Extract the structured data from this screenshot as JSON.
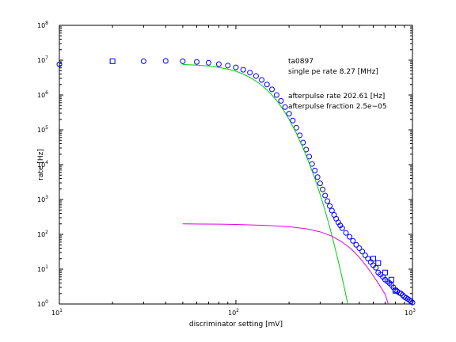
{
  "chart_data": {
    "type": "scatter",
    "title": "",
    "xlabel": "discriminator setting [mV]",
    "ylabel": "rate [Hz]",
    "xscale": "log",
    "yscale": "log",
    "xlim": [
      10,
      1000
    ],
    "ylim": [
      1,
      100000000
    ],
    "grid": false,
    "x_ticks": [
      {
        "base": "10",
        "exp": "1",
        "value": 10
      },
      {
        "base": "10",
        "exp": "2",
        "value": 100
      },
      {
        "base": "10",
        "exp": "3",
        "value": 1000
      }
    ],
    "y_ticks": [
      {
        "base": "10",
        "exp": "0",
        "value": 1
      },
      {
        "base": "10",
        "exp": "1",
        "value": 10
      },
      {
        "base": "10",
        "exp": "2",
        "value": 100
      },
      {
        "base": "10",
        "exp": "3",
        "value": 1000
      },
      {
        "base": "10",
        "exp": "4",
        "value": 10000
      },
      {
        "base": "10",
        "exp": "5",
        "value": 100000
      },
      {
        "base": "10",
        "exp": "6",
        "value": 1000000
      },
      {
        "base": "10",
        "exp": "7",
        "value": 10000000
      },
      {
        "base": "10",
        "exp": "8",
        "value": 100000000
      }
    ],
    "annotations": [
      "ta0897",
      "single pe rate 8.27 [MHz]",
      "afterpulse rate 202.61 [Hz]",
      "afterpulse fraction 2.5e−05"
    ],
    "series": [
      {
        "marker": "circle",
        "color": "#0000ff",
        "points": [
          [
            10,
            7600000
          ],
          [
            30,
            9300000
          ],
          [
            40,
            9500000
          ],
          [
            50,
            9300000
          ],
          [
            60,
            8900000
          ],
          [
            70,
            8400000
          ],
          [
            80,
            7700000
          ],
          [
            90,
            7000000
          ],
          [
            100,
            6200000
          ],
          [
            110,
            5300000
          ],
          [
            120,
            4400000
          ],
          [
            130,
            3500000
          ],
          [
            140,
            2700000
          ],
          [
            150,
            2000000
          ],
          [
            160,
            1450000
          ],
          [
            170,
            1000000
          ],
          [
            180,
            680000
          ],
          [
            190,
            450000
          ],
          [
            200,
            290000
          ],
          [
            210,
            185000
          ],
          [
            220,
            115000
          ],
          [
            230,
            70000
          ],
          [
            240,
            43000
          ],
          [
            250,
            27000
          ],
          [
            260,
            17000
          ],
          [
            270,
            10500
          ],
          [
            280,
            6800
          ],
          [
            290,
            4400
          ],
          [
            300,
            2900
          ],
          [
            310,
            1950
          ],
          [
            320,
            1300
          ],
          [
            330,
            900
          ],
          [
            340,
            650
          ],
          [
            350,
            480
          ],
          [
            360,
            360
          ],
          [
            370,
            280
          ],
          [
            380,
            220
          ],
          [
            390,
            180
          ],
          [
            400,
            150
          ],
          [
            420,
            110
          ],
          [
            440,
            85
          ],
          [
            460,
            65
          ],
          [
            480,
            50
          ],
          [
            500,
            40
          ],
          [
            520,
            32
          ],
          [
            540,
            25
          ],
          [
            560,
            20
          ],
          [
            580,
            16
          ],
          [
            600,
            13
          ],
          [
            620,
            11
          ],
          [
            640,
            8
          ],
          [
            660,
            7
          ],
          [
            680,
            6
          ],
          [
            700,
            5
          ],
          [
            720,
            4.5
          ],
          [
            740,
            4
          ],
          [
            760,
            3.5
          ],
          [
            780,
            3
          ],
          [
            800,
            2.5
          ],
          [
            820,
            2.3
          ],
          [
            840,
            2.1
          ],
          [
            860,
            2
          ],
          [
            880,
            1.8
          ],
          [
            900,
            1.6
          ],
          [
            920,
            1.5
          ],
          [
            940,
            1.4
          ],
          [
            960,
            1.3
          ],
          [
            980,
            1.2
          ],
          [
            1000,
            1.1
          ]
        ]
      },
      {
        "marker": "square",
        "color": "#0000ff",
        "points": [
          [
            20,
            9300000
          ],
          [
            600,
            20
          ],
          [
            640,
            15
          ],
          [
            700,
            8
          ],
          [
            760,
            5
          ],
          [
            800,
            2.4
          ]
        ]
      },
      {
        "marker": "line",
        "color": "#00cc00",
        "points": [
          [
            50,
            7500000
          ],
          [
            60,
            7200000
          ],
          [
            70,
            6800000
          ],
          [
            80,
            6200000
          ],
          [
            90,
            5500000
          ],
          [
            100,
            4800000
          ],
          [
            110,
            4000000
          ],
          [
            120,
            3200000
          ],
          [
            130,
            2500000
          ],
          [
            140,
            1900000
          ],
          [
            150,
            1400000
          ],
          [
            160,
            1000000
          ],
          [
            170,
            700000
          ],
          [
            180,
            470000
          ],
          [
            190,
            310000
          ],
          [
            200,
            200000
          ],
          [
            220,
            80000
          ],
          [
            240,
            30000
          ],
          [
            260,
            11000
          ],
          [
            280,
            4000
          ],
          [
            300,
            1400
          ],
          [
            320,
            480
          ],
          [
            340,
            160
          ],
          [
            360,
            52
          ],
          [
            380,
            17
          ],
          [
            400,
            5.5
          ],
          [
            420,
            1.8
          ],
          [
            430,
            1
          ]
        ]
      },
      {
        "marker": "line",
        "color": "#dd00dd",
        "points": [
          [
            50,
            200
          ],
          [
            80,
            196
          ],
          [
            100,
            192
          ],
          [
            150,
            180
          ],
          [
            200,
            165
          ],
          [
            250,
            145
          ],
          [
            300,
            118
          ],
          [
            350,
            88
          ],
          [
            400,
            60
          ],
          [
            450,
            38
          ],
          [
            500,
            22
          ],
          [
            550,
            12
          ],
          [
            600,
            6.5
          ],
          [
            650,
            3.5
          ],
          [
            700,
            1.9
          ],
          [
            730,
            1
          ]
        ]
      }
    ]
  }
}
